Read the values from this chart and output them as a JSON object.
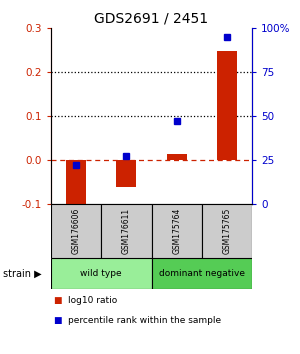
{
  "title": "GDS2691 / 2451",
  "samples": [
    "GSM176606",
    "GSM176611",
    "GSM175764",
    "GSM175765"
  ],
  "log10_ratio": [
    -0.103,
    -0.062,
    0.012,
    0.248
  ],
  "percentile_rank": [
    22,
    27,
    47,
    95
  ],
  "ylim_left": [
    -0.1,
    0.3
  ],
  "ylim_right": [
    0,
    100
  ],
  "yticks_left": [
    -0.1,
    0.0,
    0.1,
    0.2,
    0.3
  ],
  "yticks_right": [
    0,
    25,
    50,
    75,
    100
  ],
  "ytick_labels_right": [
    "0",
    "25",
    "50",
    "75",
    "100%"
  ],
  "hlines_dotted": [
    0.1,
    0.2
  ],
  "hline_dashed": 0.0,
  "bar_color": "#cc2200",
  "square_color": "#0000cc",
  "groups": [
    {
      "label": "wild type",
      "indices": [
        0,
        1
      ],
      "color": "#99ee99"
    },
    {
      "label": "dominant negative",
      "indices": [
        2,
        3
      ],
      "color": "#55cc55"
    }
  ],
  "legend_items": [
    {
      "color": "#cc2200",
      "label": "log10 ratio"
    },
    {
      "color": "#0000cc",
      "label": "percentile rank within the sample"
    }
  ],
  "strain_label": "strain",
  "cell_bg": "#cccccc",
  "bar_width": 0.4
}
